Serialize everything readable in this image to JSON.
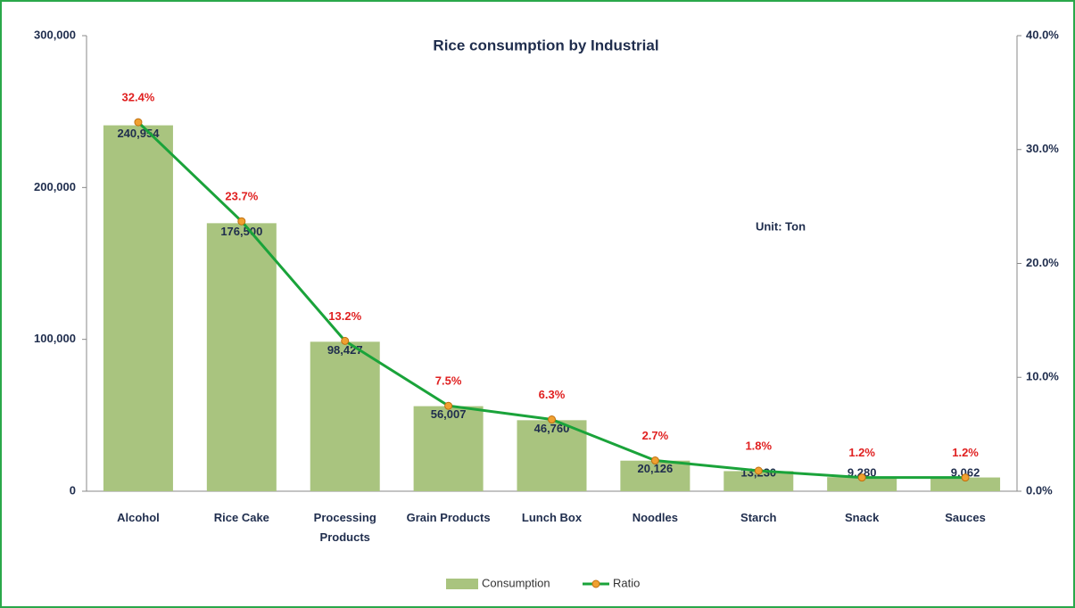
{
  "chart_data": {
    "type": "bar",
    "title": "Rice consumption by Industrial",
    "annotation": "Unit: Ton",
    "categories": [
      "Alcohol",
      "Rice Cake",
      "Processing Products",
      "Grain Products",
      "Lunch Box",
      "Noodles",
      "Starch",
      "Snack",
      "Sauces"
    ],
    "series": [
      {
        "name": "Consumption",
        "color": "#a9c47f",
        "values": [
          240954,
          176500,
          98427,
          56007,
          46760,
          20126,
          13230,
          9280,
          9062
        ],
        "value_labels": [
          "240,954",
          "176,500",
          "98,427",
          "56,007",
          "46,760",
          "20,126",
          "13,230",
          "9,280",
          "9,062"
        ]
      },
      {
        "name": "Ratio",
        "color": "#1aa33a",
        "axis": "y2",
        "marker_color": "#f0a030",
        "values": [
          32.4,
          23.7,
          13.2,
          7.5,
          6.3,
          2.7,
          1.8,
          1.2,
          1.2
        ],
        "value_labels": [
          "32.4%",
          "23.7%",
          "13.2%",
          "7.5%",
          "6.3%",
          "2.7%",
          "1.8%",
          "1.2%",
          "1.2%"
        ]
      }
    ],
    "ylim": [
      0,
      300000
    ],
    "yticks": [
      0,
      {
        "value": 100000,
        "label": "100,000"
      },
      {
        "value": 200000,
        "label": "200,000"
      },
      {
        "value": 300000,
        "label": "300,000"
      }
    ],
    "y2lim": [
      0,
      40
    ],
    "y2ticks": [
      {
        "value": 0,
        "label": "0.0%"
      },
      {
        "value": 10,
        "label": "10.0%"
      },
      {
        "value": 20,
        "label": "20.0%"
      },
      {
        "value": 30,
        "label": "30.0%"
      },
      {
        "value": 40,
        "label": "40.0%"
      }
    ]
  }
}
